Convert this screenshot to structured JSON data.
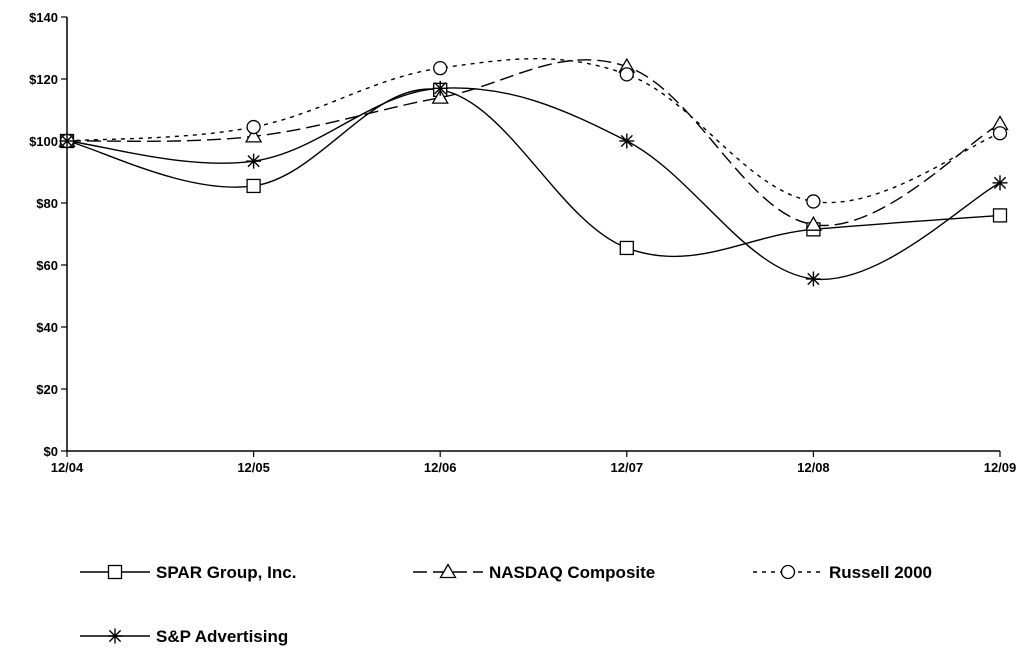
{
  "chart_data": {
    "type": "line",
    "categories": [
      "12/04",
      "12/05",
      "12/06",
      "12/07",
      "12/08",
      "12/09"
    ],
    "ylim": [
      0,
      140
    ],
    "yticks": [
      0,
      20,
      40,
      60,
      80,
      100,
      120,
      140
    ],
    "ytick_labels": [
      "$0",
      "$20",
      "$40",
      "$60",
      "$80",
      "$100",
      "$120",
      "$140"
    ],
    "grid": false,
    "legend_position": "bottom",
    "series": [
      {
        "name": "SPAR Group, Inc.",
        "values": [
          100,
          85.5,
          116.5,
          65.5,
          71.5,
          76
        ],
        "marker": "square",
        "dash": "solid",
        "color": "#000000"
      },
      {
        "name": "NASDAQ Composite",
        "values": [
          100,
          101.5,
          114,
          124,
          73,
          105.5
        ],
        "marker": "triangle",
        "dash": "dashed",
        "color": "#000000"
      },
      {
        "name": "Russell 2000",
        "values": [
          100,
          104.5,
          123.5,
          121.5,
          80.5,
          102.5
        ],
        "marker": "circle",
        "dash": "dotted",
        "color": "#000000"
      },
      {
        "name": "S&P Advertising",
        "values": [
          100,
          93.5,
          117,
          100,
          55.5,
          86.5
        ],
        "marker": "star",
        "dash": "solid",
        "color": "#000000"
      }
    ]
  }
}
